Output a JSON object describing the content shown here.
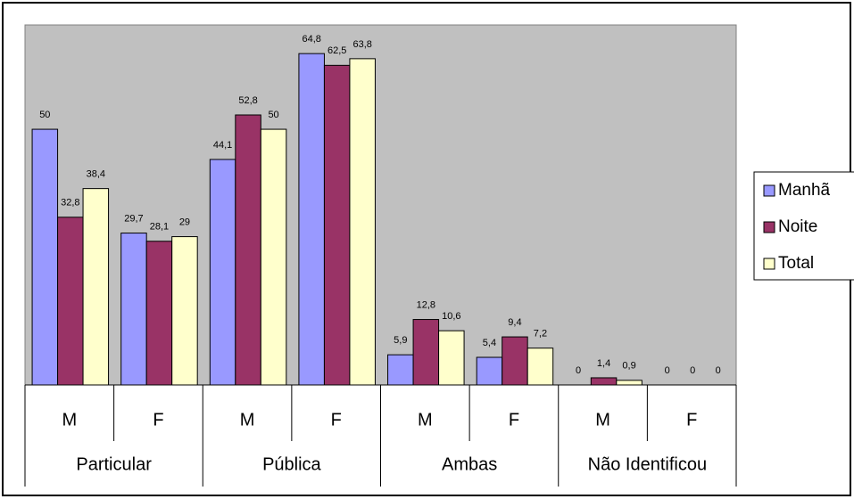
{
  "chart_data": {
    "type": "bar",
    "categories": [
      "M",
      "F",
      "M",
      "F",
      "M",
      "F",
      "M",
      "F"
    ],
    "groups": [
      "Particular",
      "Pública",
      "Ambas",
      "Não Identificou"
    ],
    "series": [
      {
        "name": "Manhã",
        "color": "#9999ff",
        "values": [
          50,
          29.7,
          44.1,
          64.8,
          5.9,
          5.4,
          0,
          0
        ],
        "value_labels": [
          "50",
          "29,7",
          "44,1",
          "64,8",
          "5,9",
          "5,4",
          "0",
          "0"
        ]
      },
      {
        "name": "Noite",
        "color": "#993366",
        "values": [
          32.8,
          28.1,
          52.8,
          62.5,
          12.8,
          9.4,
          1.4,
          0
        ],
        "value_labels": [
          "32,8",
          "28,1",
          "52,8",
          "62,5",
          "12,8",
          "9,4",
          "1,4",
          "0"
        ]
      },
      {
        "name": "Total",
        "color": "#ffffcc",
        "values": [
          38.4,
          29,
          50,
          63.8,
          10.6,
          7.2,
          0.9,
          0
        ],
        "value_labels": [
          "38,4",
          "29",
          "50",
          "63,8",
          "10,6",
          "7,2",
          "0,9",
          "0"
        ]
      }
    ],
    "ylim": [
      0,
      70.4
    ],
    "legend": "right"
  }
}
